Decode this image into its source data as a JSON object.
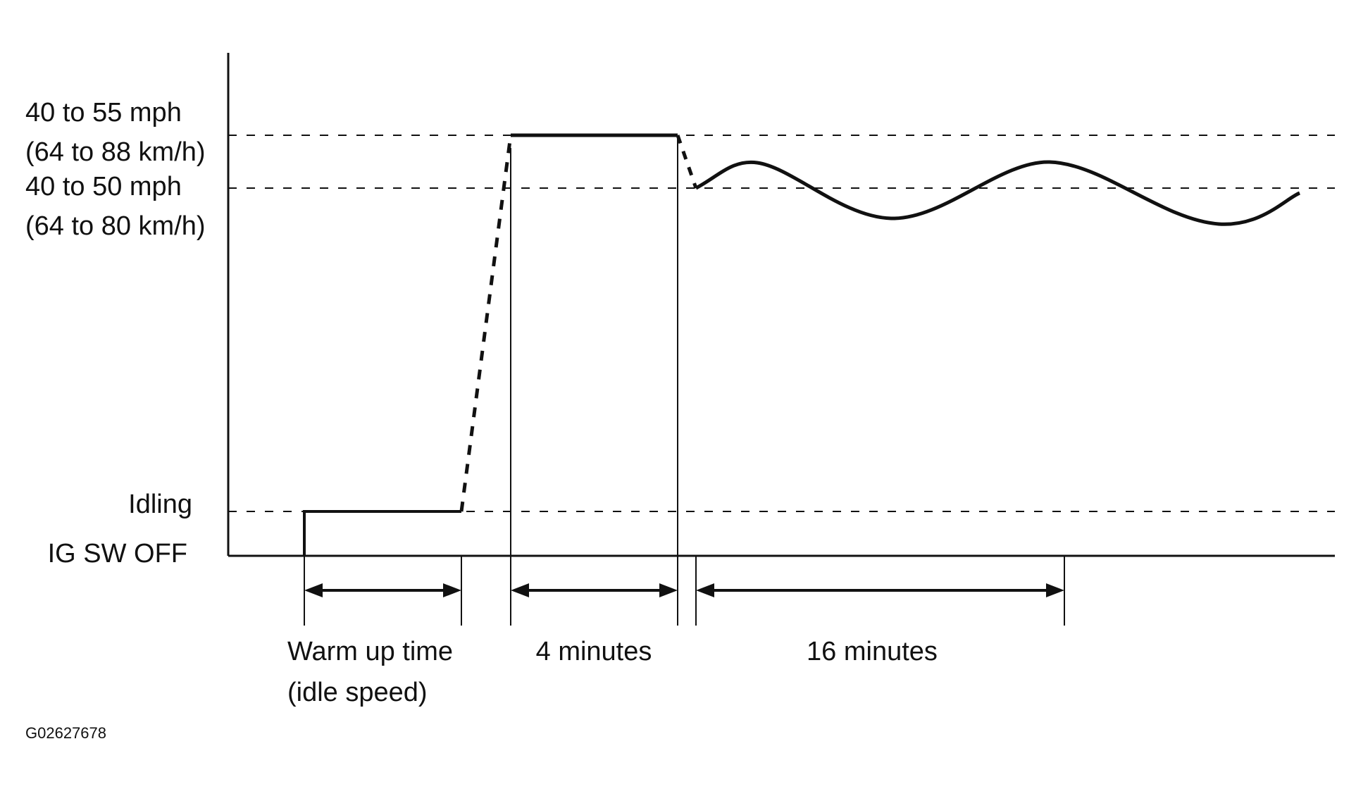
{
  "y_labels": {
    "upper_mph": "40 to 55 mph",
    "upper_kmh": "(64 to 88 km/h)",
    "lower_mph": "40 to 50 mph",
    "lower_kmh": "(64 to 80 km/h)",
    "idling": "Idling",
    "ig_sw_off": "IG SW OFF"
  },
  "durations": {
    "warm_up_line1": "Warm up time",
    "warm_up_line2": "(idle speed)",
    "four_minutes": "4 minutes",
    "sixteen_minutes": "16 minutes"
  },
  "figure_code": "G02627678",
  "colors": {
    "line": "#111111",
    "background": "#ffffff"
  }
}
